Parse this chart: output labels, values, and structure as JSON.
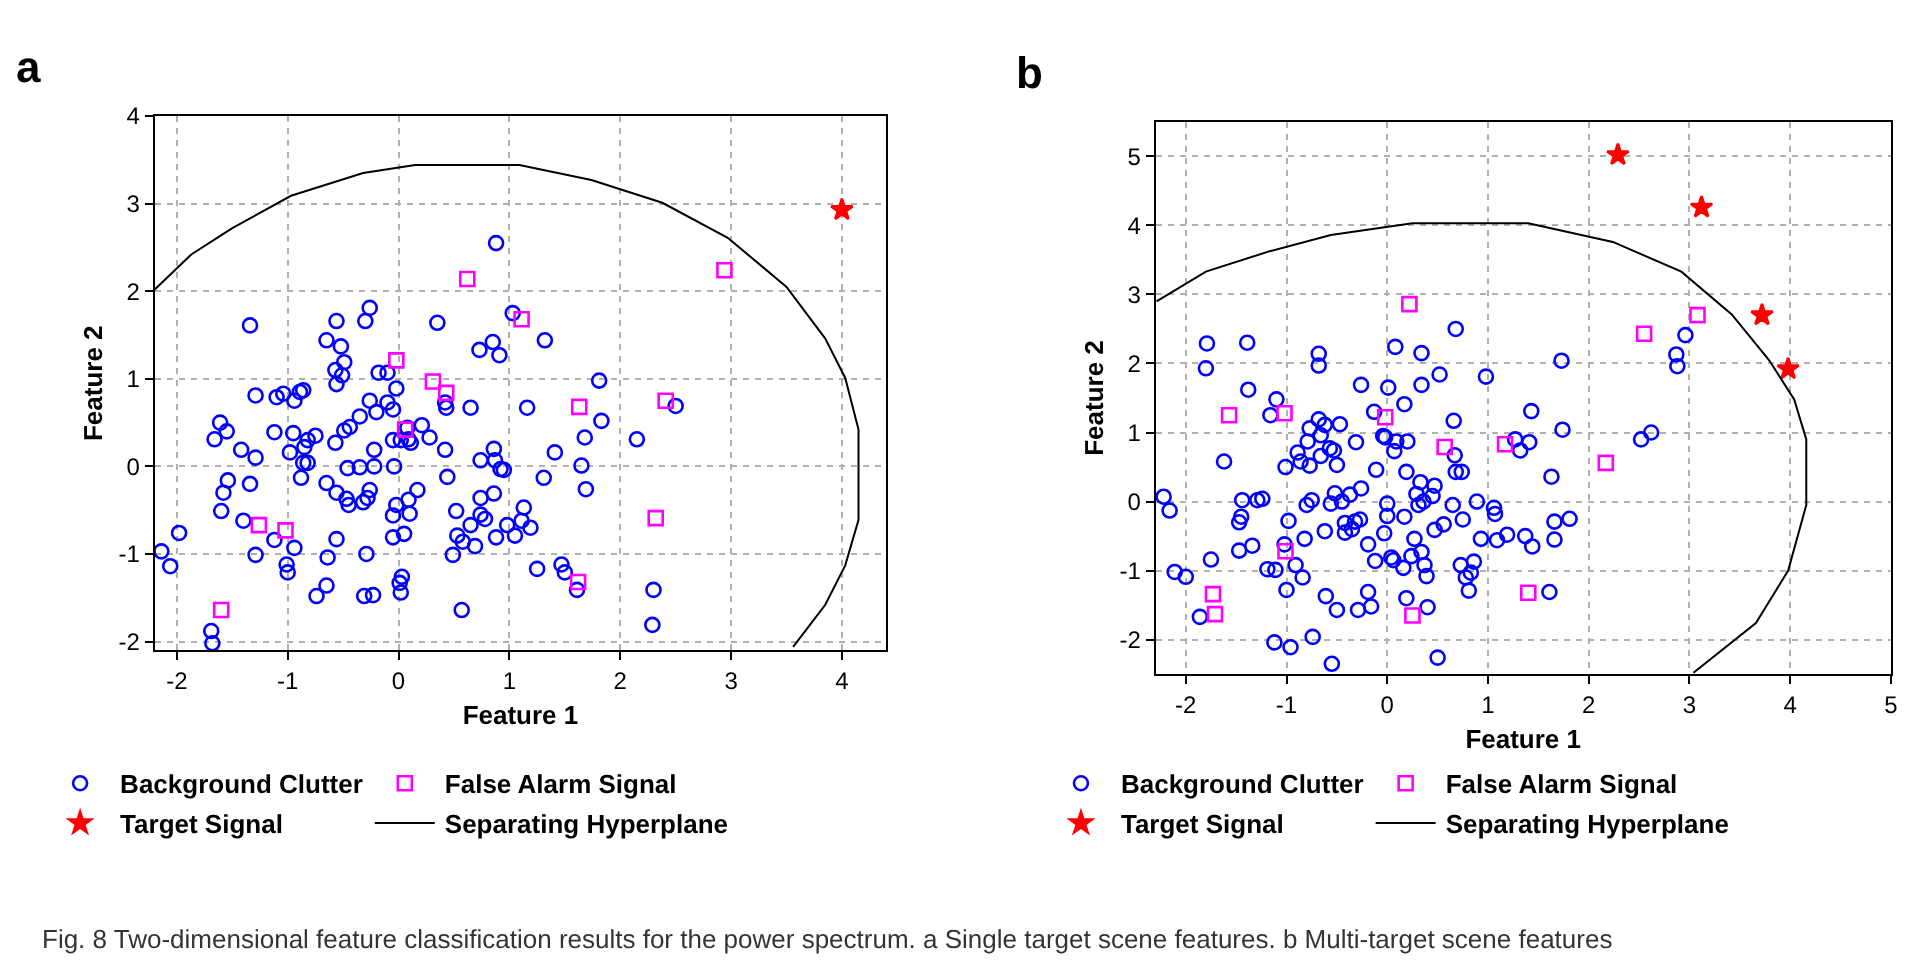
{
  "chart_data": [
    {
      "type": "scatter",
      "title": "a",
      "xlabel": "Feature 1",
      "ylabel": "Feature 2",
      "xlim": [
        -2.2,
        4.4
      ],
      "ylim": [
        -2.1,
        4
      ],
      "xticks": [
        -2,
        -1,
        0,
        1,
        2,
        3,
        4
      ],
      "yticks": [
        -2,
        -1,
        0,
        1,
        2,
        3,
        4
      ],
      "grid": true,
      "legend": "bottom",
      "annotations": [
        "Fig. 8 Two-dimensional feature classification results for the power spectrum. a Single target scene features. b Multi-target scene features"
      ],
      "series": [
        {
          "name": "Background Clutter",
          "color": "#0000ff",
          "marker": "circle",
          "x": [
            -2.14,
            -2.06,
            -1.98,
            -1.69,
            -1.68,
            -1.34,
            -1.29,
            -1.66,
            -1.61,
            -1.55,
            -1.42,
            -1.29,
            -1.54,
            -1.58,
            -1.6,
            -1.4,
            -1.34,
            -1.29,
            -1.12,
            -1.12,
            -1.1,
            -1.04,
            -0.94,
            -0.95,
            -0.98,
            -0.94,
            -1.01,
            -1.0,
            -0.89,
            -0.86,
            -0.85,
            -0.82,
            -0.75,
            -0.86,
            -0.82,
            -0.88,
            -0.74,
            -0.65,
            -0.64,
            -0.65,
            -0.65,
            -0.56,
            -0.52,
            -0.57,
            -0.51,
            -0.49,
            -0.56,
            -0.57,
            -0.49,
            -0.44,
            -0.35,
            -0.56,
            -0.46,
            -0.45,
            -0.47,
            -0.56,
            -0.35,
            -0.32,
            -0.28,
            -0.26,
            -0.29,
            -0.31,
            -0.23,
            -0.3,
            -0.26,
            -0.18,
            -0.1,
            -0.26,
            -0.2,
            -0.1,
            -0.22,
            -0.22,
            -0.04,
            -0.05,
            -0.02,
            -0.05,
            0.02,
            0.09,
            0.08,
            0.11,
            0.21,
            0.28,
            0.17,
            0.09,
            -0.02,
            -0.05,
            0.1,
            -0.05,
            0.05,
            0.03,
            0.01,
            0.02,
            0.35,
            0.42,
            0.43,
            0.42,
            0.44,
            0.65,
            0.73,
            0.91,
            0.88,
            0.85,
            1.03,
            0.86,
            0.74,
            0.87,
            0.92,
            0.95,
            0.52,
            0.74,
            0.74,
            0.78,
            0.86,
            0.65,
            0.58,
            0.53,
            0.69,
            0.49,
            0.57,
            0.98,
            0.88,
            1.05,
            1.13,
            1.11,
            1.19,
            1.16,
            1.32,
            1.31,
            1.41,
            1.25,
            1.47,
            1.5,
            1.61,
            1.65,
            1.68,
            1.69,
            1.81,
            1.83,
            2.15,
            2.3,
            2.29,
            2.5
          ],
          "values": [
            -0.97,
            -1.14,
            -0.76,
            -1.88,
            -2.02,
            1.61,
            0.81,
            0.31,
            0.5,
            0.4,
            0.19,
            0.1,
            -0.16,
            -0.3,
            -0.51,
            -0.62,
            -0.2,
            -1.01,
            -0.84,
            0.39,
            0.79,
            0.83,
            0.75,
            0.38,
            0.16,
            -0.93,
            -1.12,
            -1.21,
            0.85,
            0.87,
            0.22,
            0.3,
            0.35,
            0.04,
            0.04,
            -0.13,
            -1.48,
            -1.36,
            -1.04,
            -0.19,
            1.44,
            1.66,
            1.37,
            1.1,
            1.04,
            1.19,
            0.94,
            0.27,
            0.41,
            0.45,
            0.57,
            -0.3,
            -0.02,
            -0.44,
            -0.37,
            -0.83,
            -0.01,
            -0.41,
            -0.36,
            -0.27,
            -1.0,
            -1.48,
            -1.47,
            1.66,
            1.81,
            1.07,
            1.07,
            0.75,
            0.62,
            0.73,
            0.19,
            0.0,
            0.0,
            0.65,
            0.89,
            0.3,
            0.3,
            0.31,
            0.44,
            0.27,
            0.47,
            0.33,
            -0.27,
            -0.38,
            -0.44,
            -0.56,
            -0.54,
            -0.81,
            -0.77,
            -1.26,
            -1.33,
            -1.44,
            1.64,
            0.73,
            0.67,
            0.19,
            -0.12,
            0.67,
            1.33,
            1.27,
            2.55,
            1.42,
            1.75,
            0.2,
            0.07,
            0.07,
            -0.03,
            -0.04,
            -0.51,
            -0.36,
            -0.55,
            -0.6,
            -0.31,
            -0.67,
            -0.86,
            -0.79,
            -0.91,
            -1.01,
            -1.64,
            -0.67,
            -0.81,
            -0.79,
            -0.47,
            -0.62,
            -0.7,
            0.67,
            1.44,
            -0.13,
            0.16,
            -1.17,
            -1.12,
            -1.21,
            -1.41,
            0.01,
            0.33,
            -0.26,
            0.98,
            0.52,
            0.31,
            -1.41,
            -1.81,
            0.69
          ]
        },
        {
          "name": "False Alarm Signal",
          "color": "#ff00ff",
          "marker": "square",
          "x": [
            0.62,
            1.11,
            -0.02,
            0.31,
            0.43,
            0.06,
            1.63,
            2.41,
            2.94,
            2.32,
            -1.26,
            -1.02,
            -1.6,
            1.62
          ],
          "values": [
            2.14,
            1.68,
            1.21,
            0.97,
            0.84,
            0.42,
            0.68,
            0.75,
            2.24,
            -0.59,
            -0.67,
            -0.73,
            -1.64,
            -1.32
          ]
        },
        {
          "name": "Target Signal",
          "color": "#ff0000",
          "marker": "star",
          "x": [
            4.0
          ],
          "values": [
            2.93
          ]
        },
        {
          "name": "Separating Hyperplane",
          "type": "line",
          "color": "#000000",
          "marker": "none",
          "line_style": "solid",
          "x": [
            -2.2,
            -1.87,
            -1.5,
            -0.97,
            -0.32,
            0.15,
            1.09,
            1.74,
            2.38,
            2.97,
            3.5,
            3.85,
            4.03,
            4.15,
            4.15,
            4.03,
            3.85,
            3.56
          ],
          "values": [
            2.02,
            2.42,
            2.72,
            3.09,
            3.35,
            3.44,
            3.44,
            3.27,
            3.01,
            2.61,
            2.05,
            1.46,
            1.01,
            0.42,
            -0.61,
            -1.13,
            -1.58,
            -2.06
          ]
        }
      ]
    },
    {
      "type": "scatter",
      "title": "b",
      "xlabel": "Feature 1",
      "ylabel": "Feature 2",
      "xlim": [
        -2.3,
        5
      ],
      "ylim": [
        -2.5,
        5.5
      ],
      "xticks": [
        -2,
        -1,
        0,
        1,
        2,
        3,
        4,
        5
      ],
      "yticks": [
        -2,
        -1,
        0,
        1,
        2,
        3,
        4,
        5
      ],
      "grid": true,
      "legend": "bottom",
      "series": [
        {
          "name": "Background Clutter",
          "color": "#0000ff",
          "marker": "circle",
          "x": [
            -2.22,
            -2.16,
            -2.11,
            -2.0,
            -1.86,
            -1.79,
            -1.8,
            -1.62,
            -1.75,
            -1.39,
            -1.38,
            -1.47,
            -1.47,
            -1.45,
            -1.44,
            -1.29,
            -1.24,
            -1.34,
            -1.19,
            -1.11,
            -1.16,
            -1.1,
            -1.12,
            -0.96,
            -1.01,
            -0.98,
            -1.02,
            -1.0,
            -0.91,
            -0.89,
            -0.86,
            -0.84,
            -0.82,
            -0.8,
            -0.79,
            -0.77,
            -0.75,
            -0.77,
            -0.68,
            -0.68,
            -0.68,
            -0.66,
            -0.66,
            -0.74,
            -0.61,
            -0.62,
            -0.62,
            -0.57,
            -0.53,
            -0.5,
            -0.56,
            -0.52,
            -0.55,
            -0.5,
            -0.47,
            -0.45,
            -0.42,
            -0.42,
            -0.37,
            -0.35,
            -0.31,
            -0.32,
            -0.29,
            -0.26,
            -0.26,
            -0.27,
            -0.19,
            -0.16,
            -0.19,
            -0.12,
            -0.13,
            -0.11,
            -0.04,
            -0.02,
            -0.03,
            0.0,
            0.0,
            0.01,
            0.04,
            0.06,
            0.07,
            0.08,
            0.09,
            0.2,
            0.19,
            0.17,
            0.16,
            0.19,
            0.17,
            0.24,
            0.27,
            0.29,
            0.31,
            0.33,
            0.34,
            0.34,
            0.36,
            0.34,
            0.37,
            0.39,
            0.4,
            0.45,
            0.47,
            0.47,
            0.52,
            0.5,
            0.56,
            0.68,
            0.66,
            0.65,
            0.67,
            0.68,
            0.74,
            0.75,
            0.73,
            0.78,
            0.81,
            0.83,
            0.86,
            0.89,
            0.93,
            0.98,
            1.06,
            1.07,
            1.09,
            1.19,
            1.27,
            1.32,
            1.37,
            1.41,
            1.43,
            1.44,
            1.61,
            1.63,
            1.66,
            1.66,
            1.73,
            1.74,
            1.81,
            2.52,
            2.62,
            2.87,
            2.88,
            2.96
          ],
          "values": [
            0.07,
            -0.13,
            -1.02,
            -1.09,
            -1.67,
            2.29,
            1.93,
            0.58,
            -0.84,
            2.3,
            1.62,
            -0.71,
            -0.3,
            -0.22,
            0.02,
            0.02,
            0.04,
            -0.64,
            -0.98,
            -0.99,
            1.25,
            1.48,
            -2.04,
            -2.11,
            0.5,
            -0.28,
            -0.62,
            -1.28,
            -0.92,
            0.71,
            0.58,
            -1.1,
            -0.54,
            -0.05,
            0.87,
            0.52,
            0.02,
            1.06,
            2.14,
            1.97,
            1.19,
            0.96,
            0.66,
            -1.96,
            -1.37,
            -0.43,
            1.11,
            0.77,
            0.74,
            0.53,
            -0.03,
            0.12,
            -2.35,
            -1.57,
            1.12,
            0.0,
            -0.31,
            -0.45,
            0.1,
            -0.4,
            0.86,
            -0.29,
            -1.57,
            1.69,
            0.19,
            -0.26,
            -1.31,
            -1.52,
            -0.62,
            -0.86,
            1.3,
            0.46,
            0.95,
            0.93,
            -0.46,
            -0.03,
            -0.21,
            1.65,
            -0.81,
            -0.85,
            0.73,
            2.24,
            0.87,
            0.87,
            0.43,
            -0.22,
            -0.96,
            -1.4,
            1.41,
            -0.79,
            -0.54,
            0.11,
            -0.05,
            0.28,
            2.15,
            1.69,
            0.0,
            -0.73,
            -0.92,
            -1.08,
            -1.53,
            0.08,
            0.23,
            -0.41,
            1.84,
            -2.26,
            -0.33,
            2.5,
            1.17,
            -0.05,
            0.67,
            0.43,
            0.43,
            -0.26,
            -0.92,
            -1.1,
            -1.29,
            -1.03,
            -0.87,
            0.0,
            -0.54,
            1.81,
            -0.09,
            -0.18,
            -0.56,
            -0.48,
            0.9,
            0.74,
            -0.5,
            0.86,
            1.31,
            -0.65,
            -1.31,
            0.36,
            -0.29,
            -0.55,
            2.04,
            1.04,
            -0.25,
            0.9,
            1.0,
            2.13,
            1.96,
            2.41
          ]
        },
        {
          "name": "False Alarm Signal",
          "color": "#ff00ff",
          "marker": "square",
          "x": [
            0.22,
            3.08,
            2.55,
            -1.57,
            -1.02,
            -0.02,
            0.57,
            1.17,
            2.17,
            -1.01,
            -1.73,
            -1.71,
            0.25,
            1.4
          ],
          "values": [
            2.86,
            2.7,
            2.43,
            1.25,
            1.28,
            1.22,
            0.79,
            0.83,
            0.56,
            -0.72,
            -1.34,
            -1.63,
            -1.65,
            -1.32
          ]
        },
        {
          "name": "Target Signal",
          "color": "#ff0000",
          "marker": "star",
          "x": [
            2.29,
            3.12,
            3.72,
            3.98
          ],
          "values": [
            5.02,
            4.26,
            2.7,
            1.92
          ]
        },
        {
          "name": "Separating Hyperplane",
          "type": "line",
          "color": "#000000",
          "marker": "none",
          "line_style": "solid",
          "x": [
            -2.29,
            -1.8,
            -1.18,
            -0.56,
            0.25,
            1.4,
            2.24,
            2.92,
            3.42,
            3.79,
            4.04,
            4.16,
            4.16,
            3.98,
            3.66,
            3.04
          ],
          "values": [
            2.9,
            3.33,
            3.62,
            3.86,
            4.03,
            4.03,
            3.76,
            3.33,
            2.71,
            2.05,
            1.48,
            0.9,
            -0.05,
            -1.0,
            -1.76,
            -2.48
          ]
        }
      ]
    }
  ]
}
